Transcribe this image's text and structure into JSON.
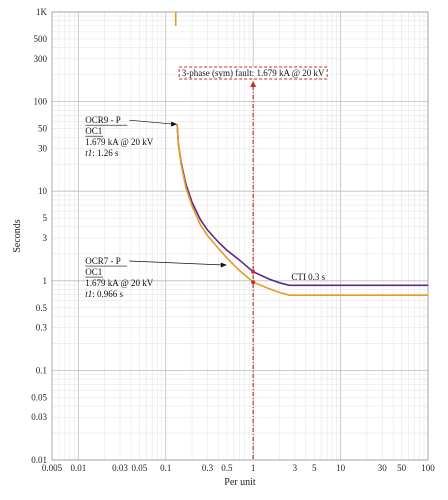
{
  "chart_data": {
    "type": "line",
    "title": "",
    "xlabel": "Per unit",
    "ylabel": "Seconds",
    "xscale": "log",
    "yscale": "log",
    "xlim": [
      0.005,
      100
    ],
    "ylim": [
      0.01,
      1000
    ],
    "grid": true,
    "x_tick_values": [
      0.005,
      0.01,
      0.03,
      0.05,
      0.1,
      0.3,
      0.5,
      1,
      3,
      5,
      10,
      30,
      50,
      100
    ],
    "x_tick_labels": [
      "0.005",
      "0.01",
      "0.03",
      "0.05",
      "0.1",
      "0.3",
      "0.5",
      "1",
      "3",
      "5",
      "10",
      "30",
      "50",
      "100"
    ],
    "y_tick_values": [
      0.01,
      0.03,
      0.05,
      0.1,
      0.3,
      0.5,
      1,
      3,
      5,
      10,
      30,
      50,
      100,
      300,
      500,
      1000
    ],
    "y_tick_labels": [
      "0.01",
      "0.03",
      "0.05",
      "0.1",
      "0.3",
      "0.5",
      "1",
      "3",
      "5",
      "10",
      "30",
      "50",
      "100",
      "300",
      "500",
      "1K"
    ],
    "series": [
      {
        "color": "#5b2a86",
        "x": [
          0.135,
          0.14,
          0.15,
          0.17,
          0.2,
          0.25,
          0.3,
          0.4,
          0.5,
          0.7,
          1.0,
          1.5,
          2.0,
          2.6,
          5,
          10,
          30,
          100
        ],
        "y": [
          56,
          33,
          21,
          12,
          7.5,
          4.8,
          3.7,
          2.7,
          2.2,
          1.7,
          1.26,
          1.05,
          0.95,
          0.89,
          0.89,
          0.89,
          0.89,
          0.89
        ]
      },
      {
        "color": "#e39a26",
        "x": [
          0.135,
          0.14,
          0.15,
          0.17,
          0.2,
          0.25,
          0.3,
          0.4,
          0.5,
          0.7,
          1.0,
          1.5,
          2.0,
          2.6,
          5,
          10,
          30,
          100
        ],
        "y": [
          56,
          33,
          20,
          11,
          6.8,
          4.2,
          3.2,
          2.3,
          1.8,
          1.3,
          0.966,
          0.82,
          0.74,
          0.69,
          0.69,
          0.69,
          0.69,
          0.69
        ]
      }
    ],
    "stub_line": {
      "x": 0.13,
      "y_from": 700,
      "y_to": 1000,
      "color": "#e39a26"
    },
    "fault_line": {
      "x": 1.0,
      "color": "#c0312b",
      "label": "3-phase (sym) fault: 1.679 kA @ 20 kV",
      "markers_y": [
        1.26,
        0.966
      ]
    },
    "annotations": [
      {
        "lines": [
          "OCR9 - P",
          "OC1",
          "1.679 kA @ 20 kV",
          "t1: 1.26 s"
        ],
        "arrow_to": [
          0.135,
          56
        ],
        "text_anchor": [
          0.012,
          56
        ]
      },
      {
        "lines": [
          "OCR7 - P",
          "OC1",
          "1.679 kA @ 20 kV",
          "t1: 0.966 s"
        ],
        "arrow_to": [
          0.5,
          1.5
        ],
        "text_anchor": [
          0.012,
          1.5
        ]
      }
    ],
    "cti_label": "CTI 0.3 s",
    "cti_position": [
      2.6,
      1.1
    ]
  }
}
